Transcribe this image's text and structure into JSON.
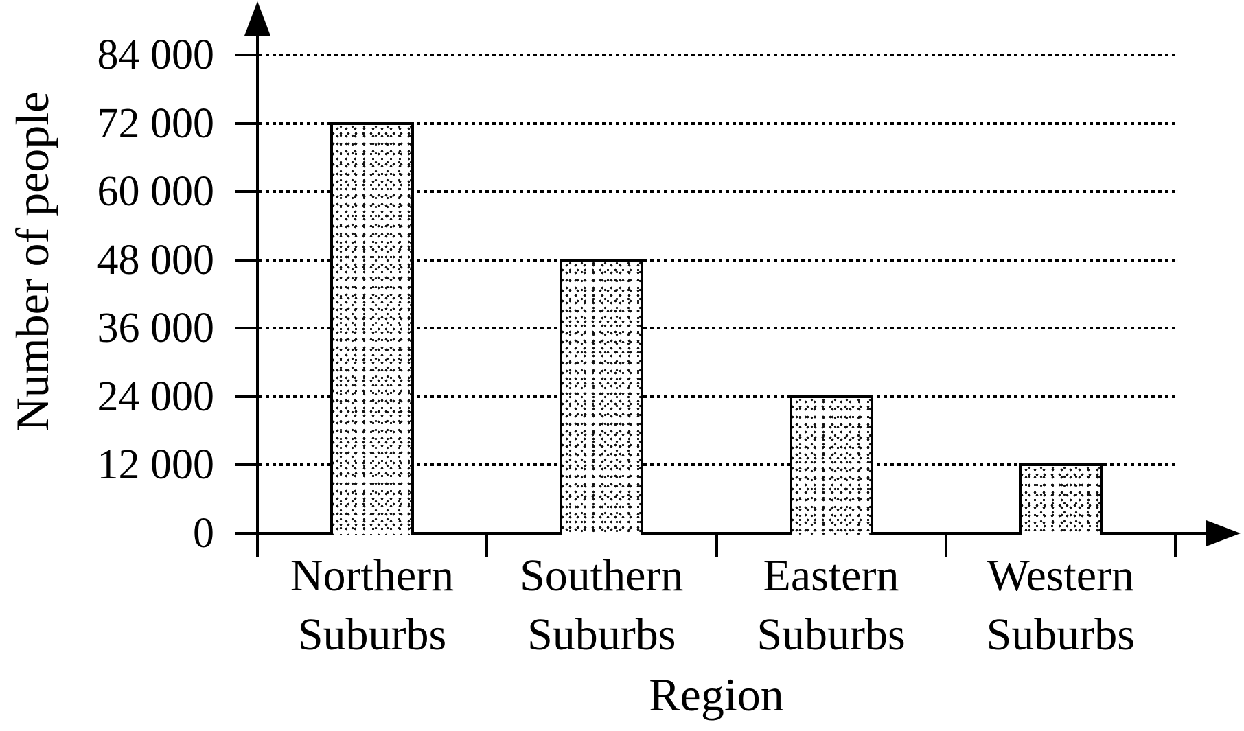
{
  "chart_data": {
    "type": "bar",
    "title": "",
    "xlabel": "Region",
    "ylabel": "Number of people",
    "categories": [
      "Northern Suburbs",
      "Southern Suburbs",
      "Eastern Suburbs",
      "Western Suburbs"
    ],
    "values": [
      72000,
      48000,
      24000,
      12000
    ],
    "yticks": [
      0,
      12000,
      24000,
      36000,
      48000,
      60000,
      72000,
      84000
    ],
    "ytick_labels": [
      "0",
      "12 000",
      "24 000",
      "36 000",
      "48 000",
      "60 000",
      "72 000",
      "84 000"
    ],
    "ylim": [
      0,
      84000
    ],
    "grid": "horizontal-dotted",
    "legend": "none",
    "bar_fill": "black stipple dots on white",
    "axis_color": "#000000",
    "grid_color": "#000000",
    "background_color": "#ffffff"
  }
}
